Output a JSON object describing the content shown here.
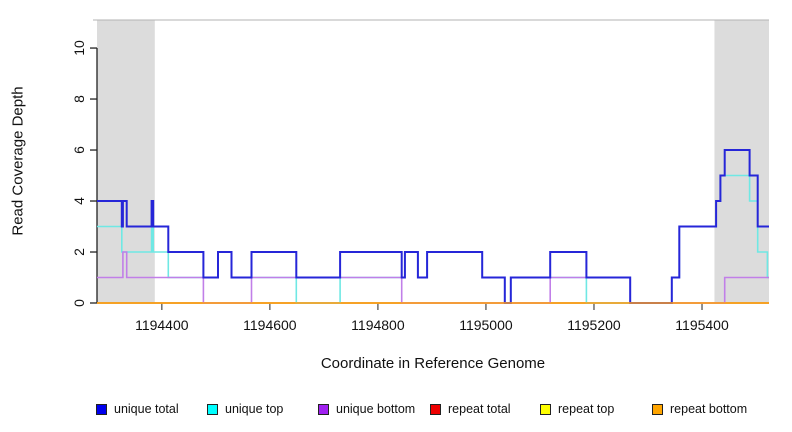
{
  "figure": {
    "background": "#ffffff"
  },
  "y_axis": {
    "title": "Read Coverage Depth",
    "ticks": [
      0,
      2,
      4,
      6,
      8,
      10
    ]
  },
  "x_axis": {
    "title": "Coordinate in Reference Genome",
    "ticks": [
      1194400,
      1194600,
      1194800,
      1195000,
      1195200,
      1195400
    ]
  },
  "legend": {
    "items": [
      {
        "label": "unique total",
        "color": "#0000EE"
      },
      {
        "label": "unique top",
        "color": "#00FFFF"
      },
      {
        "label": "unique bottom",
        "color": "#A020F0"
      },
      {
        "label": "repeat total",
        "color": "#EE0000"
      },
      {
        "label": "repeat top",
        "color": "#FFFF00"
      },
      {
        "label": "repeat bottom",
        "color": "#FFA500"
      }
    ]
  },
  "chart_data": {
    "type": "line",
    "subtype": "step-coverage",
    "title": "",
    "xlabel": "Coordinate in Reference Genome",
    "ylabel": "Read Coverage Depth",
    "xlim": [
      1194280,
      1195524
    ],
    "ylim": [
      0,
      11.1
    ],
    "x_ticks": [
      1194400,
      1194600,
      1194800,
      1195000,
      1195200,
      1195400
    ],
    "y_ticks": [
      0,
      2,
      4,
      6,
      8,
      10
    ],
    "grid": false,
    "legend_position": "bottom",
    "shaded_regions": [
      {
        "x0": 1194280,
        "x1": 1194387,
        "color": "#DCDCDC"
      },
      {
        "x0": 1195423,
        "x1": 1195524,
        "color": "#DCDCDC"
      }
    ],
    "top_border_color": "#B3B3B3",
    "series": [
      {
        "name": "repeat total",
        "color": "#CC2222",
        "width": 1.4,
        "steps": [
          [
            1194280,
            0
          ]
        ]
      },
      {
        "name": "repeat top",
        "color": "#EEEE22",
        "width": 1.4,
        "steps": [
          [
            1194280,
            0
          ]
        ]
      },
      {
        "name": "unique top",
        "color": "#6FE8E4",
        "width": 1.6,
        "steps": [
          [
            1194280,
            3
          ],
          [
            1194326,
            2
          ],
          [
            1194381,
            3
          ],
          [
            1194384,
            2
          ],
          [
            1194412,
            1
          ],
          [
            1194504,
            2
          ],
          [
            1194529,
            1
          ],
          [
            1194649,
            0
          ],
          [
            1194730,
            1
          ],
          [
            1194850,
            2
          ],
          [
            1194874,
            1
          ],
          [
            1194891,
            2
          ],
          [
            1194993,
            1
          ],
          [
            1195035,
            0
          ],
          [
            1195046,
            1
          ],
          [
            1195186,
            0
          ],
          [
            1195344,
            1
          ],
          [
            1195358,
            3
          ],
          [
            1195426,
            4
          ],
          [
            1195434,
            5
          ],
          [
            1195488,
            4
          ],
          [
            1195503,
            2
          ],
          [
            1195521,
            1
          ]
        ]
      },
      {
        "name": "unique bottom",
        "color": "#C17FE8",
        "width": 1.6,
        "steps": [
          [
            1194280,
            1
          ],
          [
            1194328,
            2
          ],
          [
            1194335,
            1
          ],
          [
            1194477,
            0
          ],
          [
            1194566,
            1
          ],
          [
            1194844,
            0
          ],
          [
            1195119,
            1
          ],
          [
            1195267,
            0
          ],
          [
            1195442,
            1
          ]
        ]
      },
      {
        "name": "unique total",
        "color": "#2626D8",
        "width": 2,
        "steps": [
          [
            1194280,
            4
          ],
          [
            1194326,
            3
          ],
          [
            1194328,
            4
          ],
          [
            1194335,
            3
          ],
          [
            1194381,
            4
          ],
          [
            1194384,
            3
          ],
          [
            1194412,
            2
          ],
          [
            1194477,
            1
          ],
          [
            1194504,
            2
          ],
          [
            1194529,
            1
          ],
          [
            1194566,
            2
          ],
          [
            1194649,
            1
          ],
          [
            1194730,
            2
          ],
          [
            1194844,
            1
          ],
          [
            1194850,
            2
          ],
          [
            1194874,
            1
          ],
          [
            1194891,
            2
          ],
          [
            1194993,
            1
          ],
          [
            1195035,
            0
          ],
          [
            1195046,
            1
          ],
          [
            1195119,
            2
          ],
          [
            1195186,
            1
          ],
          [
            1195267,
            0
          ],
          [
            1195344,
            1
          ],
          [
            1195358,
            3
          ],
          [
            1195426,
            4
          ],
          [
            1195434,
            5
          ],
          [
            1195442,
            6
          ],
          [
            1195488,
            5
          ],
          [
            1195503,
            3
          ]
        ]
      },
      {
        "name": "repeat bottom",
        "color": "#FF9E1B",
        "width": 1.6,
        "steps": [
          [
            1194280,
            0
          ]
        ]
      }
    ]
  }
}
